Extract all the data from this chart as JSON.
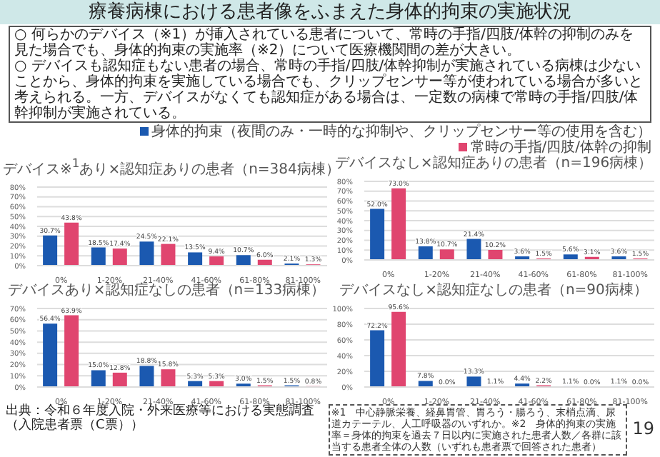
{
  "chart_data": [
    {
      "type": "bar",
      "title": "デバイス※$^{1}$あり×認知症ありの患者（n=384病棟）",
      "categories": [
        "0%",
        "1-20%",
        "21-40%",
        "41-60%",
        "61-80%",
        "81-100%"
      ],
      "series": [
        {
          "name": "身体的拘束（夜間のみ・一時的な抑制や、クリップセンサー等の使用を含む）",
          "color": "#1b59b0",
          "values": [
            30.7,
            18.5,
            24.5,
            13.5,
            10.7,
            2.1
          ],
          "value_labels": [
            "30.7%",
            "18.5%",
            "24.5%",
            "13.5%",
            "10.7%",
            "2.1%"
          ]
        },
        {
          "name": "常時の手指/四肢/体幹の抑制",
          "color": "#e0456f",
          "values": [
            43.8,
            17.4,
            22.1,
            9.4,
            6.0,
            1.3
          ],
          "value_labels": [
            "43.8%",
            "17.4%",
            "22.1%",
            "9.4%",
            "6.0%",
            "1.3%"
          ]
        }
      ],
      "ylim": [
        0,
        80
      ],
      "yticks": [
        {
          "value": 0,
          "label": "0%"
        },
        {
          "value": 10,
          "label": "10%"
        },
        {
          "value": 20,
          "label": "20%"
        },
        {
          "value": 30,
          "label": "30%"
        },
        {
          "value": 40,
          "label": "40%"
        },
        {
          "value": 50,
          "label": "50%"
        },
        {
          "value": 60,
          "label": "60%"
        },
        {
          "value": 70,
          "label": "70%"
        },
        {
          "value": 80,
          "label": "80%"
        }
      ],
      "grid": "y",
      "legend": "top right",
      "annotations": [
        "療養病棟における患者像をふまえた身体的拘束の実施状況",
        "○ 何らかのデバイス（※1）が挿入されている患者について、常時の手指/四肢/体幹の抑制のみを見た場合でも、身体的拘束の実施率（※2）について医療機関間の差が大きい。",
        "○ デバイスも認知症もない患者の場合、常時の手指/四肢/体幹抑制が実施されている病棟は少ないことから、身体的拘束を実施している場合でも、クリップセンサー等が使われている場合が多いと考えられる。一方、デバイスがなくても認知症がある場合は、一定数の病棟で常時の手指/四肢/体幹抑制が実施されている。",
        "出典：令和６年度入院・外来医療等における実態調査（入院患者票（C票））",
        "※1　中心静脈栄養、経鼻胃管、胃ろう・腸ろう、末梢点滴、尿道カテーテル、人工呼吸器のいずれか。※2　身体的拘束の実施率＝身体的拘束を過去７日以内に実施された患者人数／各群に該当する患者全体の人数（いずれも患者票で回答された患者）",
        "19"
      ]
    },
    {
      "type": "bar",
      "title": "デバイスなし×認知症ありの患者（n=196病棟）",
      "categories": [
        "0%",
        "1-20%",
        "21-40%",
        "41-60%",
        "61-80%",
        "81-100%"
      ],
      "series": [
        {
          "color": "#1b59b0",
          "values": [
            52.0,
            13.8,
            21.4,
            3.6,
            5.6,
            3.6
          ],
          "value_labels": [
            "52.0%",
            "13.8%",
            "21.4%",
            "3.6%",
            "5.6%",
            "3.6%"
          ]
        },
        {
          "color": "#e0456f",
          "values": [
            73.0,
            10.7,
            10.2,
            1.5,
            3.1,
            1.5
          ],
          "value_labels": [
            "73.0%",
            "10.7%",
            "10.2%",
            "1.5%",
            "3.1%",
            "1.5%"
          ]
        }
      ],
      "ylim": [
        0,
        80
      ],
      "yticks": [
        {
          "value": 0,
          "label": "0%"
        },
        {
          "value": 10,
          "label": "10%"
        },
        {
          "value": 20,
          "label": "20%"
        },
        {
          "value": 30,
          "label": "30%"
        },
        {
          "value": 40,
          "label": "40%"
        },
        {
          "value": 50,
          "label": "50%"
        },
        {
          "value": 60,
          "label": "60%"
        },
        {
          "value": 70,
          "label": "70%"
        },
        {
          "value": 80,
          "label": "80%"
        }
      ],
      "grid": "y"
    },
    {
      "type": "bar",
      "title": "デバイスあり×認知症なしの患者（n=133病棟）",
      "categories": [
        "0%",
        "1-20%",
        "21-40%",
        "41-60%",
        "61-80%",
        "81-100%"
      ],
      "series": [
        {
          "color": "#1b59b0",
          "values": [
            56.4,
            15.0,
            18.8,
            5.3,
            3.0,
            1.5
          ],
          "value_labels": [
            "56.4%",
            "15.0%",
            "18.8%",
            "5.3%",
            "3.0%",
            "1.5%"
          ]
        },
        {
          "color": "#e0456f",
          "values": [
            63.9,
            12.8,
            15.8,
            5.3,
            1.5,
            0.8
          ],
          "value_labels": [
            "63.9%",
            "12.8%",
            "15.8%",
            "5.3%",
            "1.5%",
            "0.8%"
          ]
        }
      ],
      "ylim": [
        0,
        70
      ],
      "yticks": [
        {
          "value": 0,
          "label": "0%"
        },
        {
          "value": 10,
          "label": "10%"
        },
        {
          "value": 20,
          "label": "20%"
        },
        {
          "value": 30,
          "label": "30%"
        },
        {
          "value": 40,
          "label": "40%"
        },
        {
          "value": 50,
          "label": "50%"
        },
        {
          "value": 60,
          "label": "60%"
        },
        {
          "value": 70,
          "label": "70%"
        }
      ],
      "grid": "y"
    },
    {
      "type": "bar",
      "title": "デバイスなし×認知症なしの患者（n=90病棟）",
      "categories": [
        "0%",
        "1-20%",
        "21-40%",
        "41-60%",
        "61-80%",
        "81-100%"
      ],
      "series": [
        {
          "color": "#1b59b0",
          "colors": [
            "#1b59b0",
            "#1b59b0",
            "#1b59b0",
            "#1b59b0",
            "#9dbce6",
            "#9dbce6"
          ],
          "values": [
            72.2,
            7.8,
            13.3,
            4.4,
            1.1,
            1.1
          ],
          "value_labels": [
            "72.2%",
            "7.8%",
            "13.3%",
            "4.4%",
            "1.1%",
            "1.1%"
          ]
        },
        {
          "color": "#e0456f",
          "colors": [
            "#e0456f",
            "#e0456f",
            "#f0a9bc",
            "#e0456f",
            "#e0456f",
            "#e0456f"
          ],
          "values": [
            95.6,
            0.0,
            1.1,
            2.2,
            0.0,
            0.0
          ],
          "value_labels": [
            "95.6%",
            "0.0%",
            "1.1%",
            "2.2%",
            "0.0%",
            "0.0%"
          ]
        }
      ],
      "ylim": [
        0,
        100
      ],
      "yticks": [
        {
          "value": 0,
          "label": "0%"
        },
        {
          "value": 20,
          "label": "20%"
        },
        {
          "value": 40,
          "label": "40%"
        },
        {
          "value": 60,
          "label": "60%"
        },
        {
          "value": 80,
          "label": "80%"
        },
        {
          "value": 100,
          "label": "100%"
        }
      ],
      "grid": "y"
    }
  ]
}
